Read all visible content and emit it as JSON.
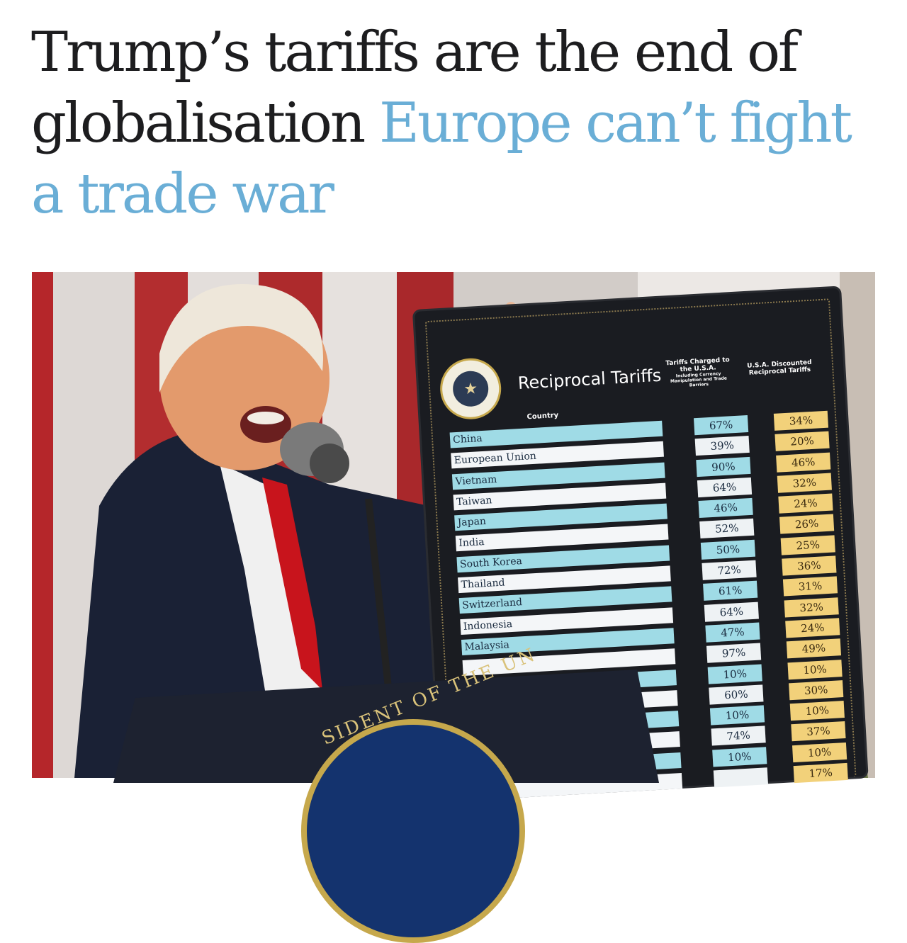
{
  "headline": {
    "text": "Trump’s tariffs are the end of globalisation ",
    "link": "Europe can’t fight a trade war"
  },
  "board": {
    "title": "Reciprocal Tariffs",
    "country_header": "Country",
    "charged_header": "Tariffs Charged to the U.S.A.",
    "charged_subheader": "Including Currency Manipulation and Trade Barriers",
    "discount_header": "U.S.A. Discounted Reciprocal Tariffs",
    "rows": [
      {
        "country": "China",
        "charged": "67%",
        "discounted": "34%"
      },
      {
        "country": "European Union",
        "charged": "39%",
        "discounted": "20%"
      },
      {
        "country": "Vietnam",
        "charged": "90%",
        "discounted": "46%"
      },
      {
        "country": "Taiwan",
        "charged": "64%",
        "discounted": "32%"
      },
      {
        "country": "Japan",
        "charged": "46%",
        "discounted": "24%"
      },
      {
        "country": "India",
        "charged": "52%",
        "discounted": "26%"
      },
      {
        "country": "South Korea",
        "charged": "50%",
        "discounted": "25%"
      },
      {
        "country": "Thailand",
        "charged": "72%",
        "discounted": "36%"
      },
      {
        "country": "Switzerland",
        "charged": "61%",
        "discounted": "31%"
      },
      {
        "country": "Indonesia",
        "charged": "64%",
        "discounted": "32%"
      },
      {
        "country": "Malaysia",
        "charged": "47%",
        "discounted": "24%"
      },
      {
        "country": "",
        "charged": "97%",
        "discounted": "49%"
      },
      {
        "country": "",
        "charged": "10%",
        "discounted": "10%"
      },
      {
        "country": "",
        "charged": "60%",
        "discounted": "30%"
      },
      {
        "country": "",
        "charged": "10%",
        "discounted": "10%"
      },
      {
        "country": "",
        "charged": "74%",
        "discounted": "37%"
      },
      {
        "country": "",
        "charged": "10%",
        "discounted": "10%"
      },
      {
        "country": "",
        "charged": "",
        "discounted": "17%"
      }
    ]
  },
  "podium": {
    "seal_text": "SIDENT OF THE UN"
  },
  "colors": {
    "link": "#6aaed6",
    "headline": "#1d1d1f"
  }
}
